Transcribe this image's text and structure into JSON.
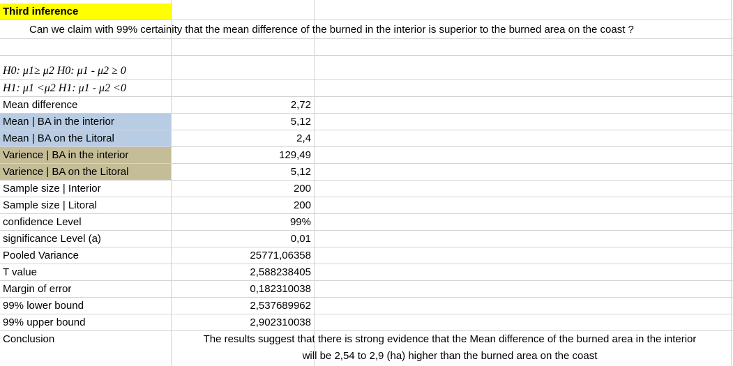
{
  "title": "Third inference",
  "question": "Can we claim with 99% certainity that the mean difference of the burned  in the interior is superior to the burned area on the coast ?",
  "hypotheses": {
    "h0": "H0: μ1≥ μ2  H0: μ1 - μ2 ≥ 0",
    "h1": "H1: μ1 <μ2  H1: μ1 - μ2 <0"
  },
  "rows": [
    {
      "label": "Mean difference",
      "value": "2,72"
    },
    {
      "label": "Mean | BA in the interior",
      "value": "5,12"
    },
    {
      "label": "Mean | BA on the Litoral",
      "value": "2,4"
    },
    {
      "label": "Varience | BA in the interior",
      "value": "129,49"
    },
    {
      "label": "Varience | BA on the Litoral",
      "value": "5,12"
    },
    {
      "label": "Sample size | Interior",
      "value": "200"
    },
    {
      "label": "Sample size | Litoral",
      "value": "200"
    },
    {
      "label": "confidence Level",
      "value": "99%"
    },
    {
      "label": "significance Level (a)",
      "value": "0,01"
    },
    {
      "label": "Pooled Variance",
      "value": "25771,06358"
    },
    {
      "label": "T value",
      "value": "2,588238405"
    },
    {
      "label": "Margin of error",
      "value": "0,182310038"
    },
    {
      "label": "99% lower bound",
      "value": "2,537689962"
    },
    {
      "label": "99% upper bound",
      "value": "2,902310038"
    }
  ],
  "conclusion": {
    "label": "Conclusion",
    "line1": "The results suggest that there is strong evidence that the Mean difference of the burned area in the interior",
    "line2": "will be 2,54 to 2,9 (ha) higher than the burned area on the coast"
  },
  "colors": {
    "title_fill": "#ffff00",
    "mean_fill": "#b8cce4",
    "variance_fill": "#c4bd97",
    "gridline": "#d4d4d4"
  }
}
